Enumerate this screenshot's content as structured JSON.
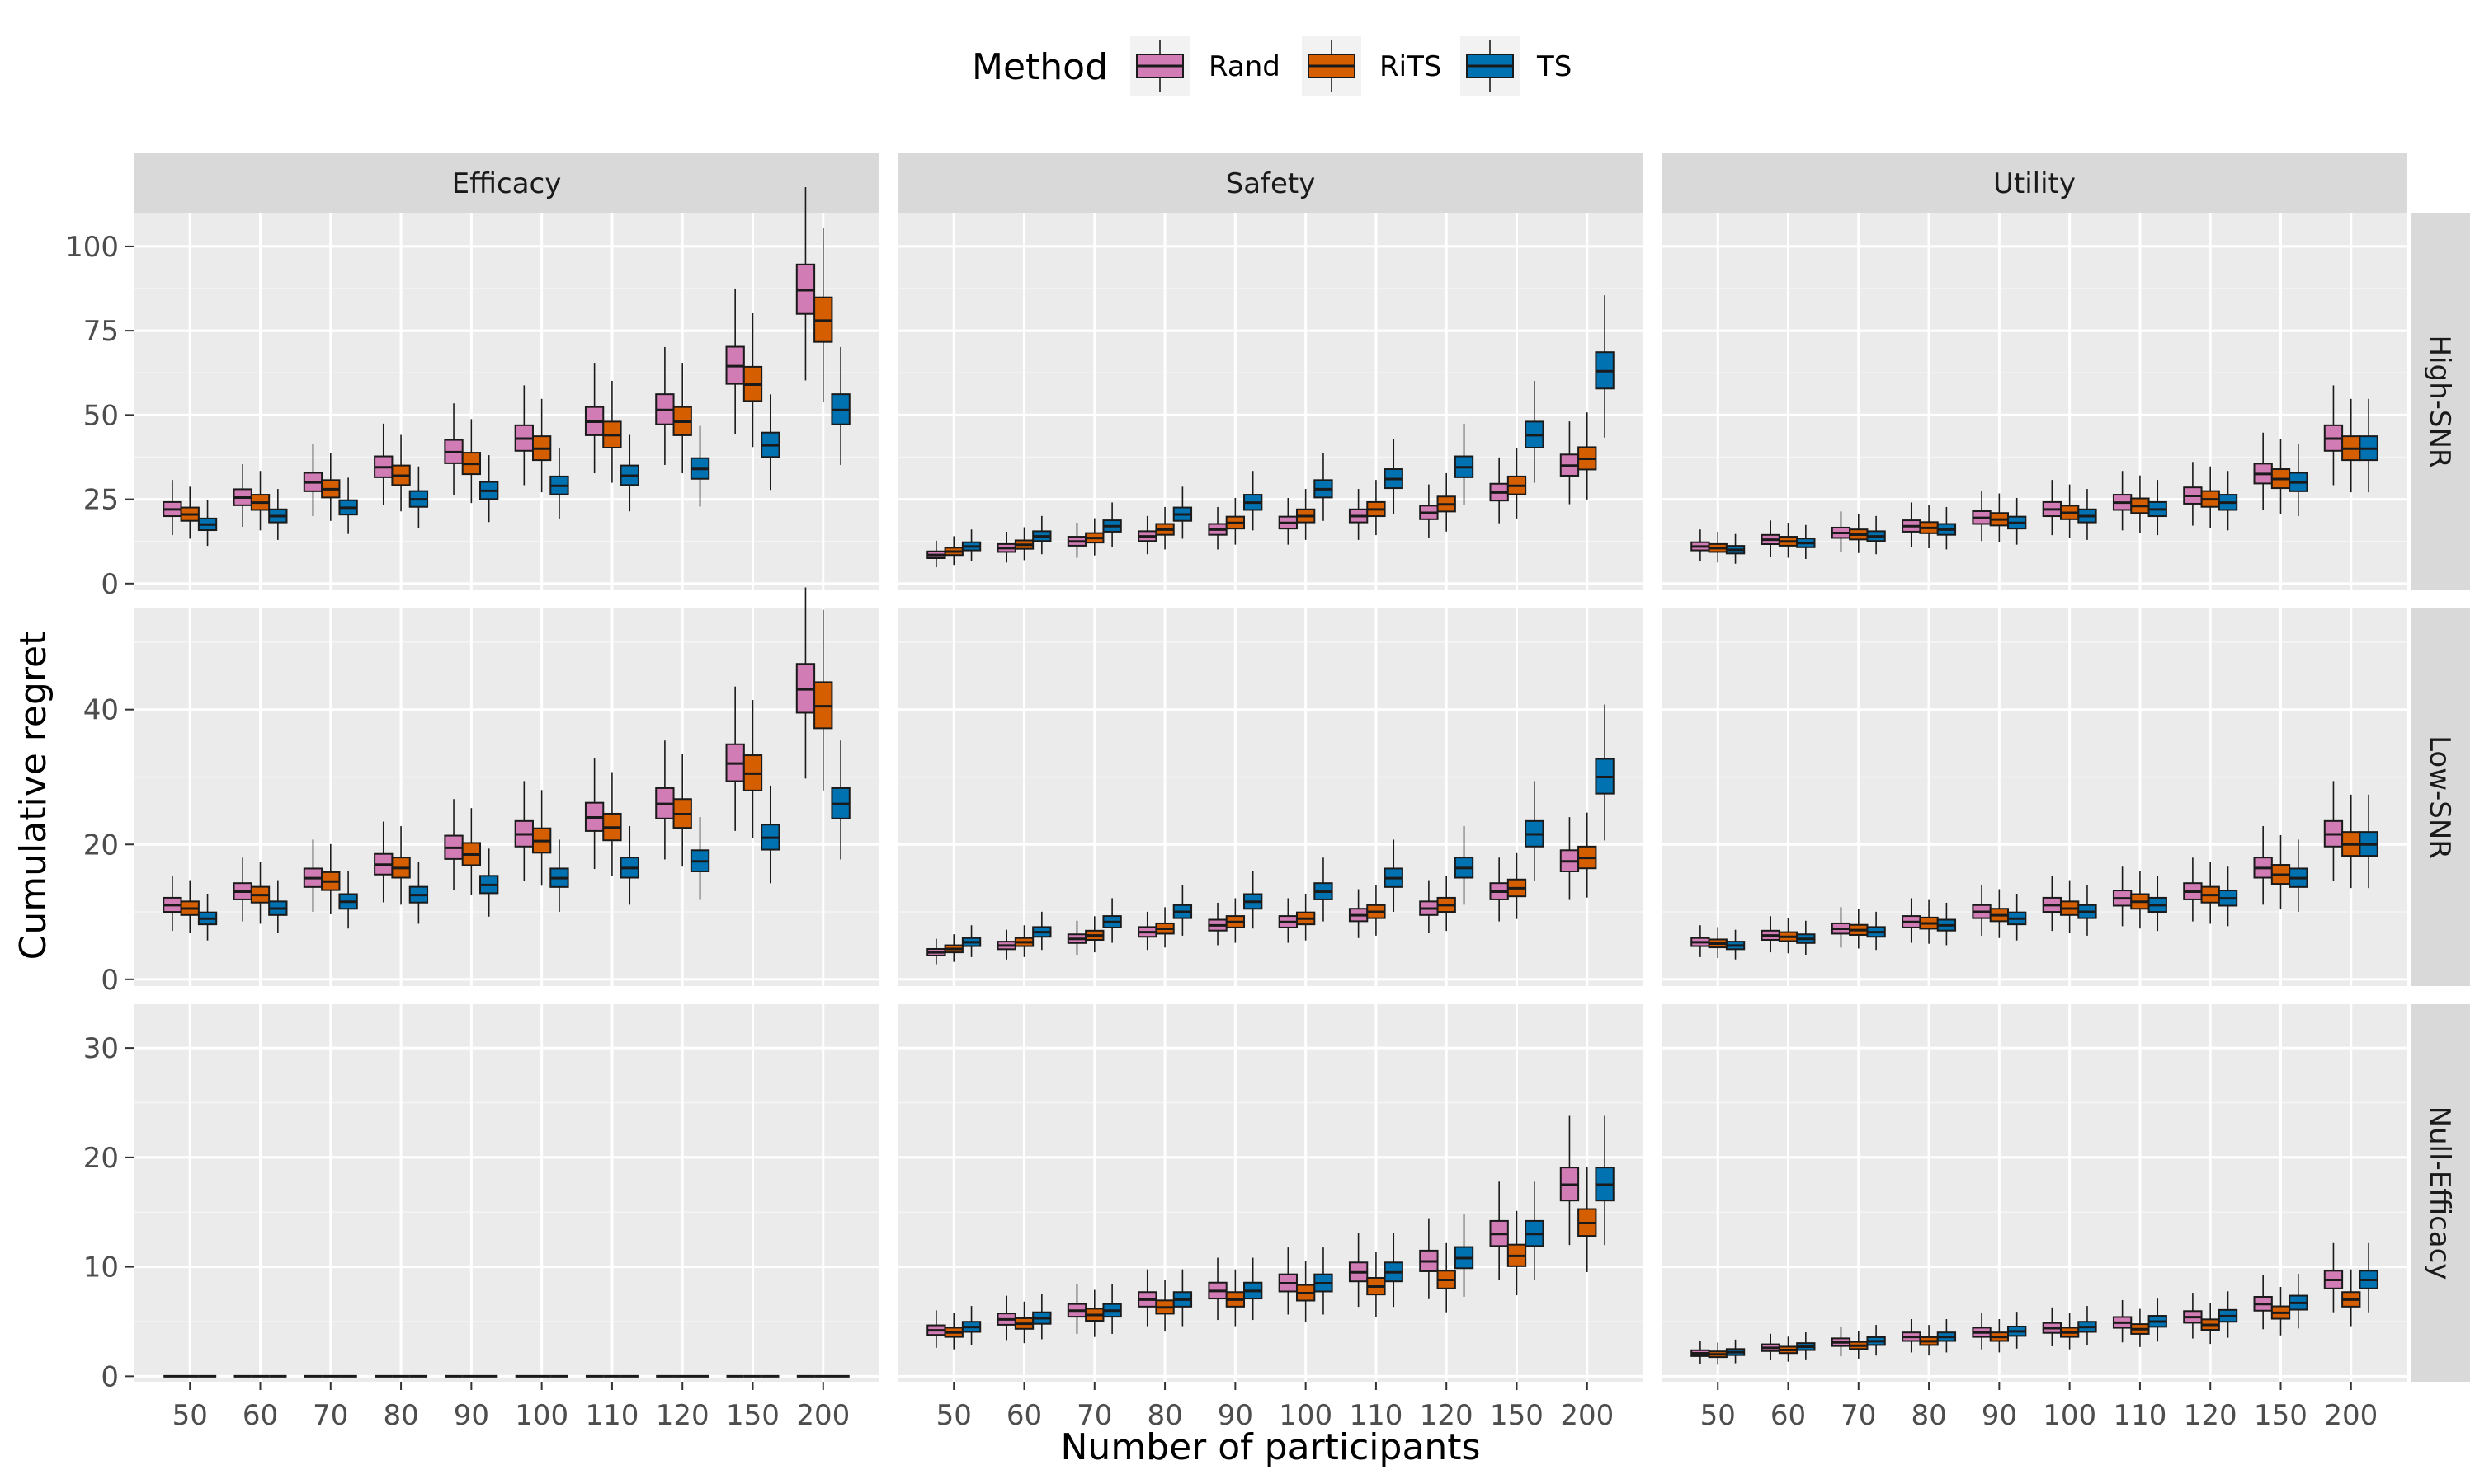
{
  "chart_data": {
    "type": "boxplot",
    "xlabel": "Number of participants",
    "ylabel": "Cumulative regret",
    "legend": {
      "title": "Method",
      "position": "top",
      "entries": [
        "Rand",
        "RiTS",
        "TS"
      ]
    },
    "colors": {
      "Rand": "#D17CB5",
      "RiTS": "#D55E00",
      "TS": "#0072B2",
      "panel_bg": "#EBEBEB",
      "strip_bg": "#D9D9D9",
      "grid": "#FFFFFF"
    },
    "categories": [
      "50",
      "60",
      "70",
      "80",
      "90",
      "100",
      "110",
      "120",
      "150",
      "200"
    ],
    "columns": [
      "Efficacy",
      "Safety",
      "Utility"
    ],
    "rows": [
      {
        "name": "High-SNR",
        "ylim": [
          -2,
          110
        ],
        "yticks": [
          0,
          25,
          50,
          75,
          100
        ]
      },
      {
        "name": "Low-SNR",
        "ylim": [
          -1,
          55
        ],
        "yticks": [
          0,
          20,
          40
        ]
      },
      {
        "name": "Null-Efficacy",
        "ylim": [
          -0.5,
          34
        ],
        "yticks": [
          0,
          10,
          20,
          30
        ]
      }
    ],
    "panels": [
      {
        "row": "High-SNR",
        "column": "Efficacy",
        "medians": {
          "Rand": [
            22,
            25.5,
            30,
            34.5,
            39,
            43,
            48,
            51.5,
            64.5,
            87
          ],
          "RiTS": [
            20.5,
            24,
            28,
            32,
            35.5,
            40,
            44,
            48,
            59,
            78
          ],
          "TS": [
            17.5,
            20,
            22.5,
            25,
            27.5,
            29,
            32,
            34,
            41,
            51.5
          ]
        }
      },
      {
        "row": "High-SNR",
        "column": "Safety",
        "medians": {
          "Rand": [
            8.5,
            10.5,
            12.5,
            14,
            16,
            18,
            20,
            21,
            27,
            35
          ],
          "RiTS": [
            9.5,
            11.5,
            13.5,
            16,
            18,
            20,
            22,
            23.5,
            29,
            37
          ],
          "TS": [
            11,
            14,
            17,
            20.5,
            24,
            28,
            31,
            34.5,
            44,
            63
          ]
        }
      },
      {
        "row": "High-SNR",
        "column": "Utility",
        "medians": {
          "Rand": [
            11,
            13,
            15,
            17,
            19.5,
            22,
            24,
            26,
            32.5,
            43
          ],
          "RiTS": [
            10.5,
            12.5,
            14.5,
            16.5,
            19,
            21,
            23,
            25,
            31,
            40
          ],
          "TS": [
            10,
            12,
            14,
            16,
            18,
            20,
            22,
            24,
            30,
            40
          ]
        }
      },
      {
        "row": "Low-SNR",
        "column": "Efficacy",
        "medians": {
          "Rand": [
            11,
            13,
            15,
            17,
            19.5,
            21.5,
            24,
            26,
            32,
            43
          ],
          "RiTS": [
            10.5,
            12.5,
            14.5,
            16.5,
            18.5,
            20.5,
            22.5,
            24.5,
            30.5,
            40.5
          ],
          "TS": [
            9,
            10.5,
            11.5,
            12.5,
            14,
            15,
            16.5,
            17.5,
            21,
            26
          ]
        }
      },
      {
        "row": "Low-SNR",
        "column": "Safety",
        "medians": {
          "Rand": [
            4,
            5,
            6,
            7,
            8,
            8.5,
            9.5,
            10.5,
            13,
            17.5
          ],
          "RiTS": [
            4.5,
            5.5,
            6.5,
            7.5,
            8.5,
            9,
            10,
            11,
            13.5,
            18
          ],
          "TS": [
            5.5,
            7,
            8.5,
            10,
            11.5,
            13,
            15,
            16.5,
            21.5,
            30
          ]
        }
      },
      {
        "row": "Low-SNR",
        "column": "Utility",
        "medians": {
          "Rand": [
            5.5,
            6.5,
            7.5,
            8.5,
            10,
            11,
            12,
            13,
            16.5,
            21.5
          ],
          "RiTS": [
            5.3,
            6.3,
            7.3,
            8.3,
            9.5,
            10.5,
            11.5,
            12.5,
            15.5,
            20
          ],
          "TS": [
            5,
            6,
            7,
            8,
            9,
            10,
            11,
            12,
            15,
            20
          ]
        }
      },
      {
        "row": "Null-Efficacy",
        "column": "Efficacy",
        "medians": {
          "Rand": [
            0,
            0,
            0,
            0,
            0,
            0,
            0,
            0,
            0,
            0
          ],
          "RiTS": [
            0,
            0,
            0,
            0,
            0,
            0,
            0,
            0,
            0,
            0
          ],
          "TS": [
            0,
            0,
            0,
            0,
            0,
            0,
            0,
            0,
            0,
            0
          ]
        }
      },
      {
        "row": "Null-Efficacy",
        "column": "Safety",
        "medians": {
          "Rand": [
            4.2,
            5.2,
            6,
            7,
            7.8,
            8.5,
            9.5,
            10.5,
            13,
            17.5
          ],
          "RiTS": [
            4,
            4.8,
            5.6,
            6.3,
            7,
            7.6,
            8.2,
            8.8,
            11,
            14
          ],
          "TS": [
            4.5,
            5.3,
            6,
            7,
            7.8,
            8.5,
            9.5,
            10.8,
            13,
            17.5
          ]
        }
      },
      {
        "row": "Null-Efficacy",
        "column": "Utility",
        "medians": {
          "Rand": [
            2.1,
            2.6,
            3.1,
            3.6,
            4,
            4.4,
            4.9,
            5.4,
            6.6,
            8.8
          ],
          "RiTS": [
            2,
            2.4,
            2.8,
            3.2,
            3.6,
            4,
            4.3,
            4.7,
            5.8,
            7
          ],
          "TS": [
            2.2,
            2.7,
            3.2,
            3.6,
            4.1,
            4.5,
            5,
            5.5,
            6.7,
            8.8
          ]
        }
      }
    ]
  }
}
